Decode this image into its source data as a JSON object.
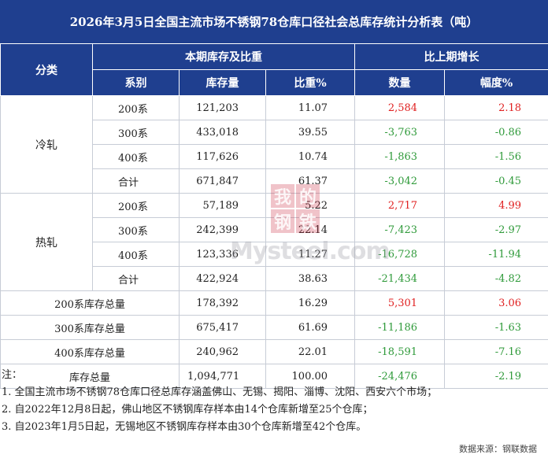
{
  "title": "2026年3月5日全国主流市场不锈钢78仓库口径社会总库存统计分析表（吨）",
  "header": {
    "category": "分类",
    "current_group": "本期库存及比重",
    "change_group": "比上期增长",
    "series_col": "系别",
    "stock_col": "库存量",
    "share_col": "比重%",
    "qty_col": "数量",
    "pct_col": "幅度%"
  },
  "groups": [
    {
      "name": "冷轧",
      "rows": [
        {
          "series": "200系",
          "stock": "121,203",
          "share": "11.07",
          "qty": "2,584",
          "pct": "2.18",
          "dir": "pos"
        },
        {
          "series": "300系",
          "stock": "433,018",
          "share": "39.55",
          "qty": "-3,763",
          "pct": "-0.86",
          "dir": "neg"
        },
        {
          "series": "400系",
          "stock": "117,626",
          "share": "10.74",
          "qty": "-1,863",
          "pct": "-1.56",
          "dir": "neg"
        },
        {
          "series": "合计",
          "stock": "671,847",
          "share": "61.37",
          "qty": "-3,042",
          "pct": "-0.45",
          "dir": "neg"
        }
      ]
    },
    {
      "name": "热轧",
      "rows": [
        {
          "series": "200系",
          "stock": "57,189",
          "share": "5.22",
          "qty": "2,717",
          "pct": "4.99",
          "dir": "pos"
        },
        {
          "series": "300系",
          "stock": "242,399",
          "share": "22.14",
          "qty": "-7,423",
          "pct": "-2.97",
          "dir": "neg"
        },
        {
          "series": "400系",
          "stock": "123,336",
          "share": "11.27",
          "qty": "-16,728",
          "pct": "-11.94",
          "dir": "neg"
        },
        {
          "series": "合计",
          "stock": "422,924",
          "share": "38.63",
          "qty": "-21,434",
          "pct": "-4.82",
          "dir": "neg"
        }
      ]
    }
  ],
  "totals": [
    {
      "label": "200系库存总量",
      "stock": "178,392",
      "share": "16.29",
      "qty": "5,301",
      "pct": "3.06",
      "dir": "pos"
    },
    {
      "label": "300系库存总量",
      "stock": "675,417",
      "share": "61.69",
      "qty": "-11,186",
      "pct": "-1.63",
      "dir": "neg"
    },
    {
      "label": "400系库存总量",
      "stock": "240,962",
      "share": "22.01",
      "qty": "-18,591",
      "pct": "-7.16",
      "dir": "neg"
    },
    {
      "label": "库存总量",
      "stock": "1,094,771",
      "share": "100.00",
      "qty": "-24,476",
      "pct": "-2.19",
      "dir": "neg"
    }
  ],
  "notes": [
    "注：",
    "1. 全国主流市场不锈钢78仓库口径总库存涵盖佛山、无锡、揭阳、淄博、沈阳、西安六个市场；",
    "2. 自2022年12月8日起，佛山地区不锈钢库存样本由14个仓库新增至25个仓库；",
    "3. 自2023年1月5日起，无锡地区不锈钢库存样本由30个仓库新增至42个仓库。"
  ],
  "source": "数据来源：钢联数据",
  "watermark": {
    "chars": [
      "我",
      "的",
      "钢",
      "铁"
    ],
    "text": "Mysteel.com"
  },
  "colors": {
    "header_bg": "#1f3f8f",
    "positive": "#e02020",
    "negative": "#2f9a3a"
  }
}
